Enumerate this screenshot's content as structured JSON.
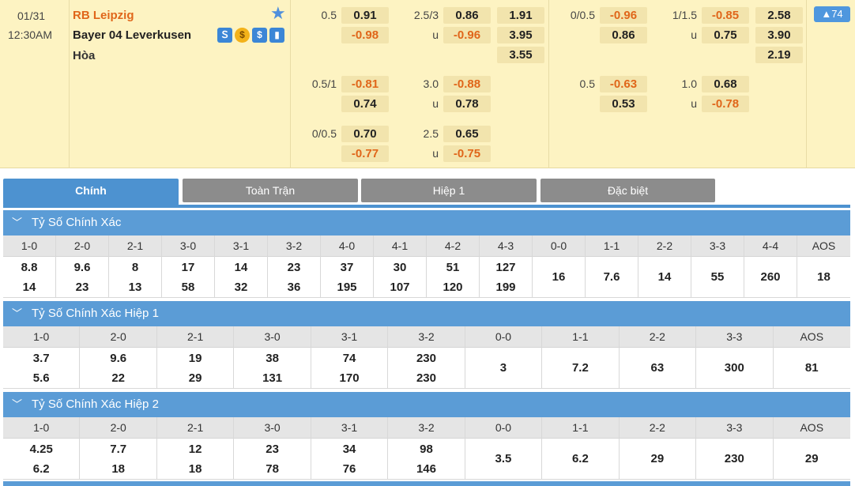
{
  "match": {
    "date": "01/31",
    "time": "12:30AM",
    "home": "RB Leipzig",
    "away": "Bayer 04 Leverkusen",
    "draw": "Hòa",
    "more_count": "74",
    "full_time": {
      "ah_rows": [
        {
          "line": "0.5",
          "home": "0.91",
          "away": "-0.98"
        },
        {
          "line": "0.5/1",
          "home": "-0.81",
          "away": "0.74"
        },
        {
          "line": "0/0.5",
          "home": "0.70",
          "away": "-0.77"
        }
      ],
      "ou_rows": [
        {
          "line": "2.5/3",
          "u": "u",
          "over": "0.86",
          "under": "-0.96"
        },
        {
          "line": "3.0",
          "u": "u",
          "over": "-0.88",
          "under": "0.78"
        },
        {
          "line": "2.5",
          "u": "u",
          "over": "0.65",
          "under": "-0.75"
        }
      ],
      "x12": [
        "1.91",
        "3.95",
        "3.55"
      ]
    },
    "first_half": {
      "ah_rows": [
        {
          "line": "0/0.5",
          "home": "-0.96",
          "away": "0.86"
        },
        {
          "line": "0.5",
          "home": "-0.63",
          "away": "0.53"
        }
      ],
      "ou_rows": [
        {
          "line": "1/1.5",
          "u": "u",
          "over": "-0.85",
          "under": "0.75"
        },
        {
          "line": "1.0",
          "u": "u",
          "over": "0.68",
          "under": "-0.78"
        }
      ],
      "x12": [
        "2.58",
        "3.90",
        "2.19"
      ]
    }
  },
  "tabs": [
    "Chính",
    "Toàn Trận",
    "Hiệp 1",
    "Đặc biệt"
  ],
  "sections": [
    {
      "title": "Tỷ Số Chính Xác",
      "headers": [
        "1-0",
        "2-0",
        "2-1",
        "3-0",
        "3-1",
        "3-2",
        "4-0",
        "4-1",
        "4-2",
        "4-3",
        "0-0",
        "1-1",
        "2-2",
        "3-3",
        "4-4",
        "AOS"
      ],
      "row1": [
        "8.8",
        "9.6",
        "8",
        "17",
        "14",
        "23",
        "37",
        "30",
        "51",
        "127"
      ],
      "row2": [
        "14",
        "23",
        "13",
        "58",
        "32",
        "36",
        "195",
        "107",
        "120",
        "199"
      ],
      "single": [
        "16",
        "7.6",
        "14",
        "55",
        "260",
        "18"
      ]
    },
    {
      "title": "Tỷ Số Chính Xác Hiệp 1",
      "headers": [
        "1-0",
        "2-0",
        "2-1",
        "3-0",
        "3-1",
        "3-2",
        "0-0",
        "1-1",
        "2-2",
        "3-3",
        "AOS"
      ],
      "row1": [
        "3.7",
        "9.6",
        "19",
        "38",
        "74",
        "230"
      ],
      "row2": [
        "5.6",
        "22",
        "29",
        "131",
        "170",
        "230"
      ],
      "single": [
        "3",
        "7.2",
        "63",
        "300",
        "81"
      ]
    },
    {
      "title": "Tỷ Số Chính Xác Hiệp 2",
      "headers": [
        "1-0",
        "2-0",
        "2-1",
        "3-0",
        "3-1",
        "3-2",
        "0-0",
        "1-1",
        "2-2",
        "3-3",
        "AOS"
      ],
      "row1": [
        "4.25",
        "7.7",
        "12",
        "23",
        "34",
        "98"
      ],
      "row2": [
        "6.2",
        "18",
        "18",
        "78",
        "76",
        "146"
      ],
      "single": [
        "3.5",
        "6.2",
        "29",
        "230",
        "29"
      ]
    }
  ],
  "colors": {
    "accent": "#5b9cd6",
    "negative": "#e0661a",
    "match_bg": "#fdf3c2"
  }
}
